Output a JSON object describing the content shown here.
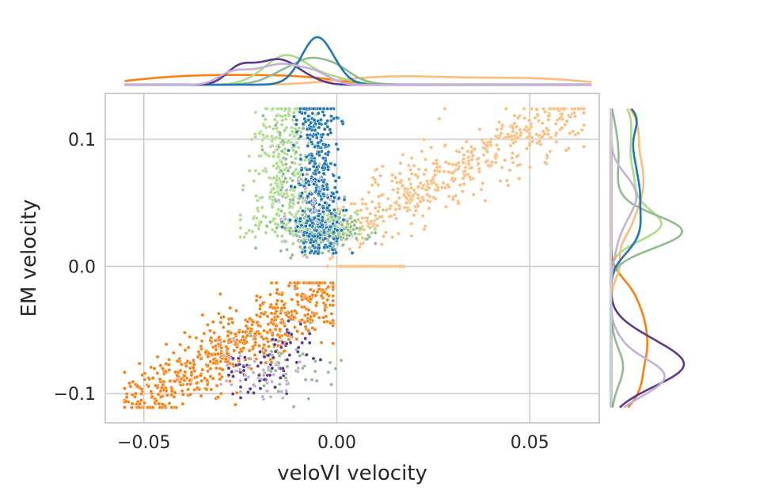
{
  "chart_data": {
    "type": "scatter",
    "title": "",
    "xlabel": "veloVI velocity",
    "ylabel": "EM velocity",
    "xlim": [
      -0.06,
      0.068
    ],
    "ylim": [
      -0.123,
      0.136
    ],
    "x_ticks": [
      -0.05,
      0.0,
      0.05
    ],
    "x_tick_labels": [
      "−0.05",
      "0.00",
      "0.05"
    ],
    "y_ticks": [
      -0.1,
      0.0,
      0.1
    ],
    "y_tick_labels": [
      "−0.1",
      "0.0",
      "0.1"
    ],
    "grid": true,
    "legend": "none",
    "marginals": [
      "top-kde",
      "right-kde"
    ],
    "colors": {
      "blue": "#1f77b4",
      "orange": "#ff7f0e",
      "light_orange": "#ffbb78",
      "green": "#8fbc8f",
      "light_green": "#aadd88",
      "purple": "#5b3a8e",
      "lavender": "#c5b0d5",
      "sandy": "#e8a060"
    },
    "clusters": [
      {
        "color": "orange",
        "description_points": [
          [
            -0.053,
            -0.108
          ],
          [
            -0.048,
            -0.1
          ],
          [
            -0.043,
            -0.09
          ],
          [
            -0.038,
            -0.08
          ],
          [
            -0.033,
            -0.07
          ],
          [
            -0.028,
            -0.06
          ],
          [
            -0.022,
            -0.05
          ],
          [
            -0.016,
            -0.04
          ],
          [
            -0.01,
            -0.03
          ],
          [
            -0.005,
            -0.02
          ],
          [
            -0.03,
            -0.1
          ],
          [
            -0.02,
            -0.085
          ],
          [
            -0.008,
            -0.07
          ],
          [
            -0.004,
            -0.06
          ]
        ]
      },
      {
        "color": "light_orange",
        "description_points": [
          [
            0.0,
            0.03
          ],
          [
            0.005,
            0.035
          ],
          [
            0.01,
            0.04
          ],
          [
            0.015,
            0.05
          ],
          [
            0.02,
            0.06
          ],
          [
            0.025,
            0.07
          ],
          [
            0.03,
            0.08
          ],
          [
            0.035,
            0.09
          ],
          [
            0.04,
            0.1
          ],
          [
            0.045,
            0.11
          ],
          [
            0.05,
            0.115
          ],
          [
            0.055,
            0.12
          ],
          [
            0.062,
            0.124
          ],
          [
            0.028,
            0.124
          ],
          [
            0.045,
            0.095
          ],
          [
            0.0,
            0.0
          ]
        ]
      },
      {
        "color": "blue",
        "description_points": [
          [
            -0.008,
            0.124
          ],
          [
            -0.006,
            0.11
          ],
          [
            -0.005,
            0.09
          ],
          [
            -0.004,
            0.07
          ],
          [
            -0.003,
            0.05
          ],
          [
            -0.002,
            0.03
          ],
          [
            -0.001,
            0.01
          ],
          [
            0.0,
            0.02
          ],
          [
            -0.007,
            0.1
          ],
          [
            -0.003,
            0.08
          ]
        ]
      },
      {
        "color": "light_green",
        "description_points": [
          [
            -0.018,
            0.124
          ],
          [
            -0.016,
            0.1
          ],
          [
            -0.014,
            0.08
          ],
          [
            -0.012,
            0.06
          ],
          [
            -0.015,
            0.04
          ],
          [
            -0.01,
            0.03
          ],
          [
            -0.02,
            0.035
          ],
          [
            -0.005,
            0.035
          ],
          [
            0.002,
            0.04
          ],
          [
            0.008,
            0.038
          ]
        ]
      },
      {
        "color": "green",
        "description_points": [
          [
            -0.012,
            0.03
          ],
          [
            -0.006,
            0.025
          ],
          [
            0.0,
            0.02
          ],
          [
            0.004,
            0.035
          ],
          [
            -0.01,
            0.05
          ],
          [
            0.006,
            0.03
          ],
          [
            -0.008,
            -0.07
          ],
          [
            -0.015,
            -0.08
          ]
        ]
      },
      {
        "color": "purple",
        "description_points": [
          [
            -0.028,
            -0.08
          ],
          [
            -0.024,
            -0.085
          ],
          [
            -0.02,
            -0.09
          ],
          [
            -0.016,
            -0.095
          ],
          [
            -0.013,
            -0.1
          ],
          [
            -0.018,
            -0.07
          ],
          [
            -0.012,
            -0.06
          ]
        ]
      },
      {
        "color": "lavender",
        "description_points": [
          [
            -0.025,
            -0.09
          ],
          [
            -0.018,
            -0.098
          ],
          [
            -0.01,
            -0.08
          ],
          [
            -0.006,
            0.05
          ],
          [
            -0.013,
            0.06
          ]
        ]
      }
    ]
  }
}
